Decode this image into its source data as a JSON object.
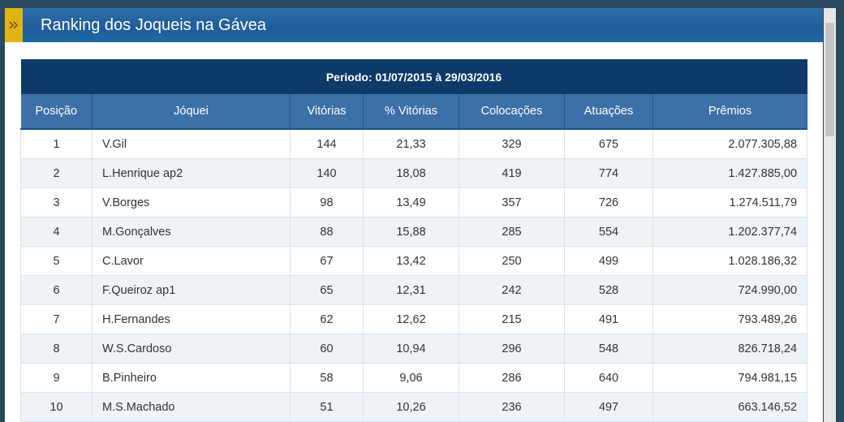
{
  "header": {
    "title": "Ranking dos Joqueis na Gávea"
  },
  "table": {
    "period": "Periodo: 01/07/2015 à 29/03/2016",
    "columns": [
      "Posição",
      "Jóquei",
      "Vitórias",
      "% Vitórias",
      "Colocações",
      "Atuações",
      "Prêmios"
    ],
    "rows": [
      [
        "1",
        "V.Gil",
        "144",
        "21,33",
        "329",
        "675",
        "2.077.305,88"
      ],
      [
        "2",
        "L.Henrique ap2",
        "140",
        "18,08",
        "419",
        "774",
        "1.427.885,00"
      ],
      [
        "3",
        "V.Borges",
        "98",
        "13,49",
        "357",
        "726",
        "1.274.511,79"
      ],
      [
        "4",
        "M.Gonçalves",
        "88",
        "15,88",
        "285",
        "554",
        "1.202.377,74"
      ],
      [
        "5",
        "C.Lavor",
        "67",
        "13,42",
        "250",
        "499",
        "1.028.186,32"
      ],
      [
        "6",
        "F.Queiroz ap1",
        "65",
        "12,31",
        "242",
        "528",
        "724.990,00"
      ],
      [
        "7",
        "H.Fernandes",
        "62",
        "12,62",
        "215",
        "491",
        "793.489,26"
      ],
      [
        "8",
        "W.S.Cardoso",
        "60",
        "10,94",
        "296",
        "548",
        "826.718,24"
      ],
      [
        "9",
        "B.Pinheiro",
        "58",
        "9,06",
        "286",
        "640",
        "794.981,15"
      ],
      [
        "10",
        "M.S.Machado",
        "51",
        "10,26",
        "236",
        "497",
        "663.146,52"
      ]
    ]
  }
}
